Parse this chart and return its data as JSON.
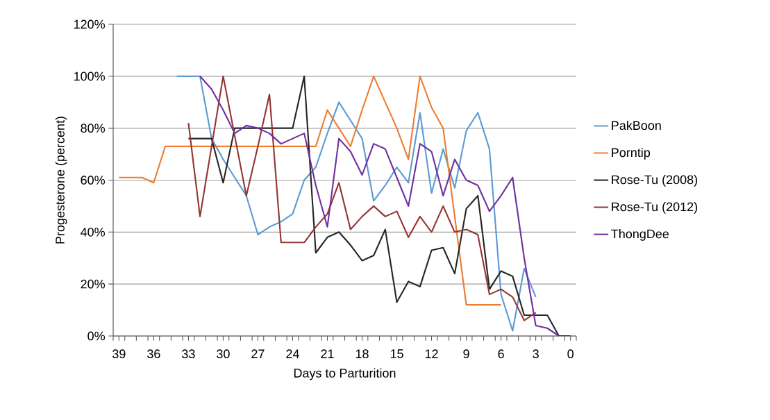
{
  "chart_data": {
    "type": "line",
    "xlabel": "Days to Parturition",
    "ylabel": "Progesterone (percent)",
    "categories": [
      "39",
      null,
      null,
      "36",
      null,
      null,
      "33",
      null,
      null,
      "30",
      null,
      null,
      "27",
      null,
      null,
      "24",
      null,
      null,
      "21",
      null,
      null,
      "18",
      null,
      null,
      "15",
      null,
      null,
      "12",
      null,
      null,
      "9",
      null,
      null,
      "6",
      null,
      null,
      "3",
      null,
      null,
      "0"
    ],
    "ylim": [
      0,
      120
    ],
    "yticks": [
      {
        "value": 0,
        "label": "0%"
      },
      {
        "value": 20,
        "label": "20%"
      },
      {
        "value": 40,
        "label": "40%"
      },
      {
        "value": 60,
        "label": "60%"
      },
      {
        "value": 80,
        "label": "80%"
      },
      {
        "value": 100,
        "label": "100%"
      },
      {
        "value": 120,
        "label": "120%"
      }
    ],
    "grid": "y",
    "legend": "right",
    "marker": "none",
    "line_style": "solid",
    "series": [
      {
        "name": "PakBoon",
        "color": "#5b9bd5",
        "values": [
          null,
          null,
          null,
          null,
          null,
          100,
          100,
          100,
          76,
          68,
          61,
          54,
          39,
          42,
          44,
          47,
          60,
          65,
          78,
          90,
          83,
          76,
          52,
          58,
          65,
          59,
          86,
          55,
          72,
          57,
          79,
          86,
          72,
          16,
          2,
          26,
          15,
          null,
          null,
          null
        ]
      },
      {
        "name": "Porntip",
        "color": "#ed7d31",
        "values": [
          61,
          61,
          61,
          59,
          73,
          73,
          73,
          73,
          73,
          73,
          73,
          73,
          73,
          73,
          73,
          73,
          73,
          73,
          87,
          80,
          73,
          87,
          100,
          90,
          80,
          68,
          100,
          88,
          80,
          46,
          12,
          12,
          12,
          12,
          null,
          null,
          null,
          null,
          null,
          null
        ]
      },
      {
        "name": "Rose-Tu (2008)",
        "color": "#262626",
        "values": [
          null,
          null,
          null,
          null,
          null,
          null,
          76,
          76,
          76,
          59,
          80,
          80,
          80,
          80,
          80,
          80,
          100,
          32,
          38,
          40,
          35,
          29,
          31,
          41,
          13,
          21,
          19,
          33,
          34,
          24,
          49,
          54,
          18,
          25,
          23,
          8,
          8,
          8,
          0,
          0
        ]
      },
      {
        "name": "Rose-Tu (2012)",
        "color": "#943634",
        "values": [
          null,
          null,
          null,
          null,
          null,
          null,
          82,
          46,
          73,
          100,
          77,
          54,
          73,
          93,
          36,
          36,
          36,
          42,
          47,
          59,
          41,
          46,
          50,
          46,
          48,
          38,
          46,
          40,
          50,
          40,
          41,
          39,
          16,
          18,
          15,
          6,
          9,
          null,
          null,
          null
        ]
      },
      {
        "name": "ThongDee",
        "color": "#7030a0",
        "values": [
          null,
          null,
          null,
          null,
          null,
          null,
          null,
          100,
          95,
          87,
          78,
          81,
          80,
          78,
          74,
          76,
          78,
          58,
          42,
          76,
          71,
          62,
          74,
          72,
          61,
          50,
          74,
          71,
          54,
          68,
          60,
          58,
          48,
          54,
          61,
          30,
          4,
          3,
          0,
          null
        ]
      }
    ]
  }
}
